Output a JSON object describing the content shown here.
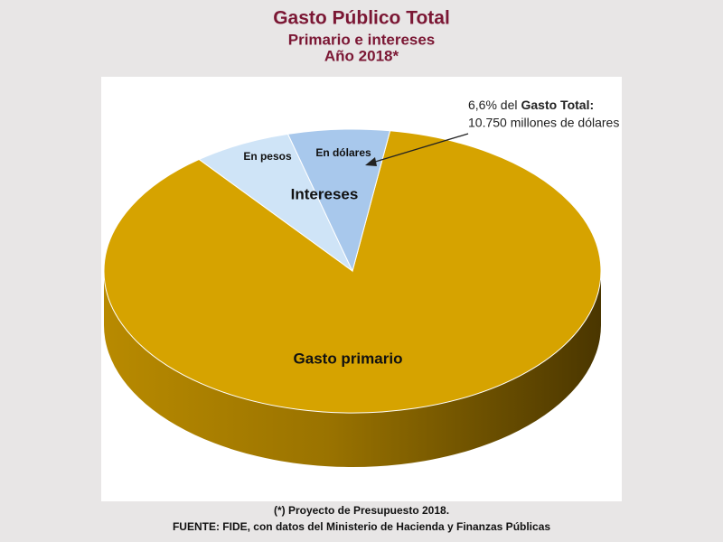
{
  "chart_data": {
    "type": "pie",
    "title": "Gasto Público Total",
    "subtitle": [
      "Primario e intereses",
      "Año 2018*"
    ],
    "categories": [
      "Gasto primario",
      "En pesos",
      "En dólares"
    ],
    "values": [
      87,
      6.4,
      6.6
    ],
    "colors": [
      "#d6a300",
      "#cfe4f7",
      "#a8c8ec"
    ],
    "group_label": "Intereses",
    "annotation": [
      "6,6% del",
      "Gasto Total:",
      "10.750 millones de dólares"
    ],
    "footnote": "(*) Proyecto de Presupuesto 2018.",
    "source": "FUENTE: FIDE, con datos del Ministerio de Hacienda y Finanzas Públicas"
  }
}
